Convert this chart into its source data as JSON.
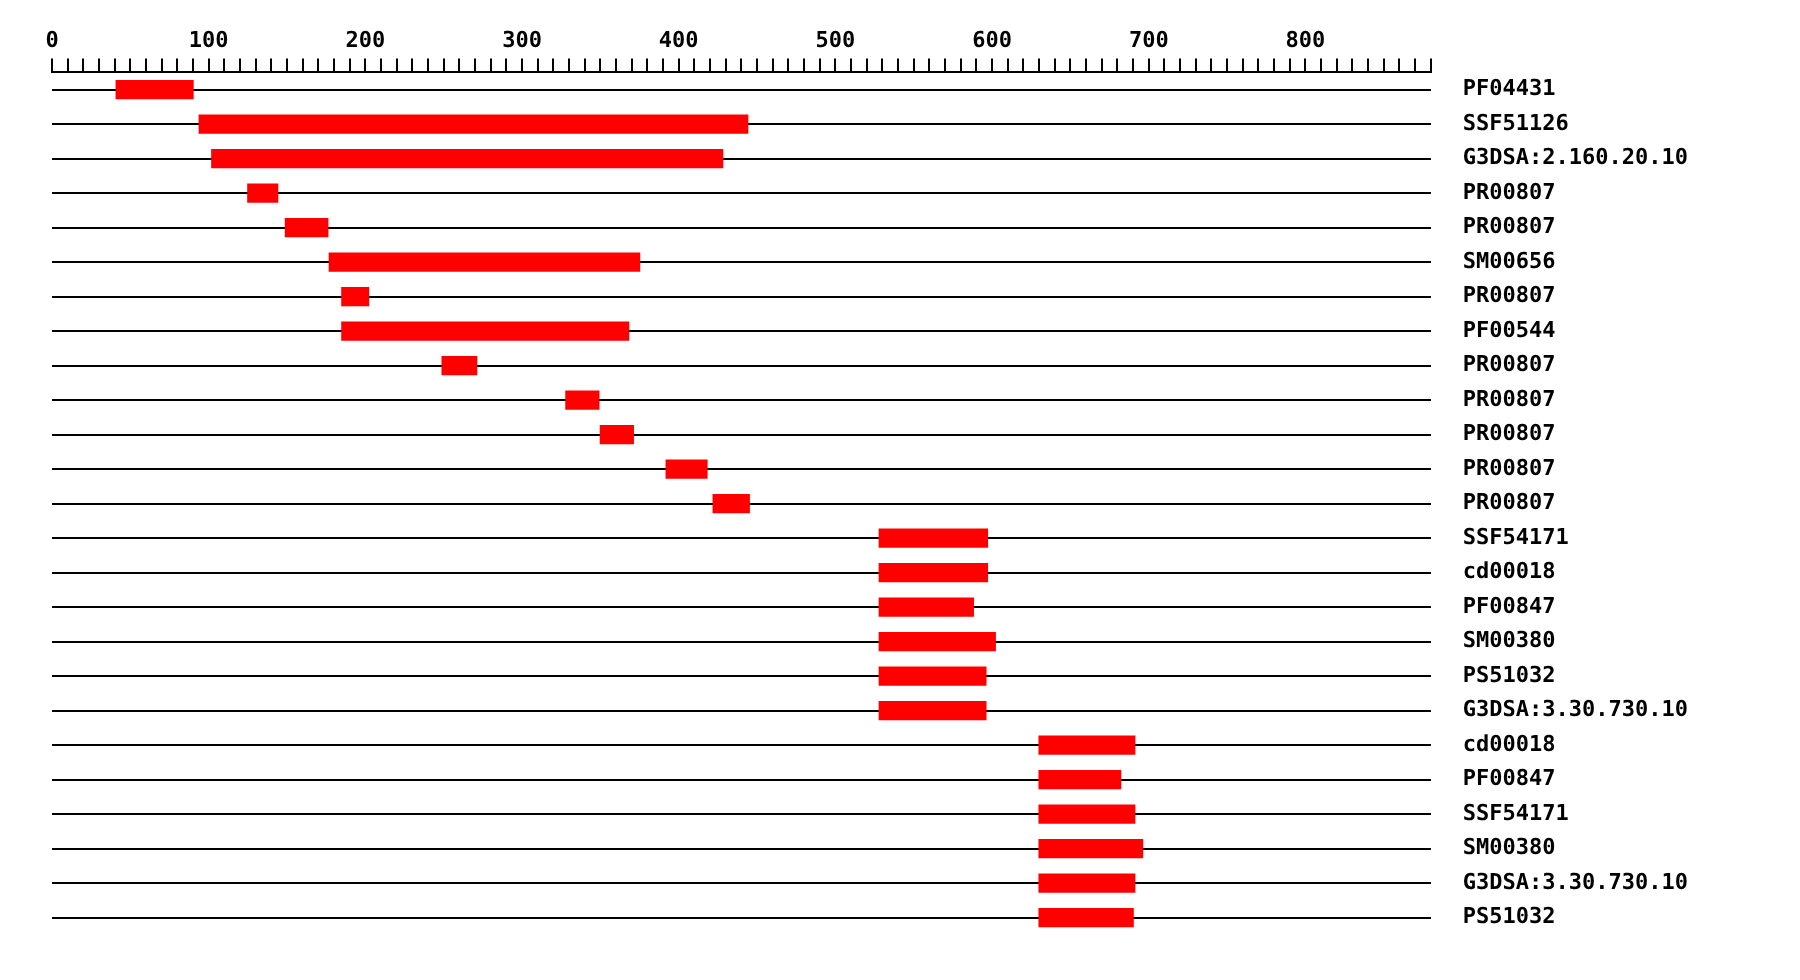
{
  "chart_data": {
    "type": "bar",
    "orientation": "horizontal",
    "color": "#ff0000",
    "grid": "y",
    "legend": false,
    "categories": [
      "PF04431",
      "SSF51126",
      "G3DSA:2.160.20.10",
      "PR00807",
      "PR00807",
      "SM00656",
      "PR00807",
      "PF00544",
      "PR00807",
      "PR00807",
      "PR00807",
      "PR00807",
      "PR00807",
      "SSF54171",
      "cd00018",
      "PF00847",
      "SM00380",
      "PS51032",
      "G3DSA:3.30.730.10",
      "cd00018",
      "PF00847",
      "SSF54171",
      "SM00380",
      "G3DSA:3.30.730.10",
      "PS51032"
    ],
    "base": [
      41,
      94,
      102,
      125,
      149,
      177,
      185,
      185,
      249,
      328,
      350,
      392,
      422,
      528,
      528,
      528,
      528,
      528,
      528,
      630,
      630,
      630,
      630,
      630,
      630
    ],
    "values": [
      49,
      350,
      326,
      19,
      27,
      198,
      17,
      183,
      22,
      21,
      21,
      26,
      23,
      69,
      69,
      60,
      74,
      68,
      68,
      61,
      52,
      61,
      66,
      61,
      60
    ],
    "xlim": [
      0,
      880
    ],
    "xticks": [
      0,
      {
        "value": 10,
        "label": null
      },
      {
        "value": 20,
        "label": null
      },
      {
        "value": 30,
        "label": null
      },
      {
        "value": 40,
        "label": null
      },
      {
        "value": 50,
        "label": null
      },
      {
        "value": 60,
        "label": null
      },
      {
        "value": 70,
        "label": null
      },
      {
        "value": 80,
        "label": null
      },
      {
        "value": 90,
        "label": null
      },
      100,
      {
        "value": 110,
        "label": null
      },
      {
        "value": 120,
        "label": null
      },
      {
        "value": 130,
        "label": null
      },
      {
        "value": 140,
        "label": null
      },
      {
        "value": 150,
        "label": null
      },
      {
        "value": 160,
        "label": null
      },
      {
        "value": 170,
        "label": null
      },
      {
        "value": 180,
        "label": null
      },
      {
        "value": 190,
        "label": null
      },
      200,
      {
        "value": 210,
        "label": null
      },
      {
        "value": 220,
        "label": null
      },
      {
        "value": 230,
        "label": null
      },
      {
        "value": 240,
        "label": null
      },
      {
        "value": 250,
        "label": null
      },
      {
        "value": 260,
        "label": null
      },
      {
        "value": 270,
        "label": null
      },
      {
        "value": 280,
        "label": null
      },
      {
        "value": 290,
        "label": null
      },
      300,
      {
        "value": 310,
        "label": null
      },
      {
        "value": 320,
        "label": null
      },
      {
        "value": 330,
        "label": null
      },
      {
        "value": 340,
        "label": null
      },
      {
        "value": 350,
        "label": null
      },
      {
        "value": 360,
        "label": null
      },
      {
        "value": 370,
        "label": null
      },
      {
        "value": 380,
        "label": null
      },
      {
        "value": 390,
        "label": null
      },
      400,
      {
        "value": 410,
        "label": null
      },
      {
        "value": 420,
        "label": null
      },
      {
        "value": 430,
        "label": null
      },
      {
        "value": 440,
        "label": null
      },
      {
        "value": 450,
        "label": null
      },
      {
        "value": 460,
        "label": null
      },
      {
        "value": 470,
        "label": null
      },
      {
        "value": 480,
        "label": null
      },
      {
        "value": 490,
        "label": null
      },
      500,
      {
        "value": 510,
        "label": null
      },
      {
        "value": 520,
        "label": null
      },
      {
        "value": 530,
        "label": null
      },
      {
        "value": 540,
        "label": null
      },
      {
        "value": 550,
        "label": null
      },
      {
        "value": 560,
        "label": null
      },
      {
        "value": 570,
        "label": null
      },
      {
        "value": 580,
        "label": null
      },
      {
        "value": 590,
        "label": null
      },
      600,
      {
        "value": 610,
        "label": null
      },
      {
        "value": 620,
        "label": null
      },
      {
        "value": 630,
        "label": null
      },
      {
        "value": 640,
        "label": null
      },
      {
        "value": 650,
        "label": null
      },
      {
        "value": 660,
        "label": null
      },
      {
        "value": 670,
        "label": null
      },
      {
        "value": 680,
        "label": null
      },
      {
        "value": 690,
        "label": null
      },
      700,
      {
        "value": 710,
        "label": null
      },
      {
        "value": 720,
        "label": null
      },
      {
        "value": 730,
        "label": null
      },
      {
        "value": 740,
        "label": null
      },
      {
        "value": 750,
        "label": null
      },
      {
        "value": 760,
        "label": null
      },
      {
        "value": 770,
        "label": null
      },
      {
        "value": 780,
        "label": null
      },
      {
        "value": 790,
        "label": null
      },
      800,
      {
        "value": 810,
        "label": null
      },
      {
        "value": 820,
        "label": null
      },
      {
        "value": 830,
        "label": null
      },
      {
        "value": 840,
        "label": null
      },
      {
        "value": 850,
        "label": null
      },
      {
        "value": 860,
        "label": null
      },
      {
        "value": 870,
        "label": null
      },
      {
        "value": 880,
        "label": null
      }
    ]
  }
}
